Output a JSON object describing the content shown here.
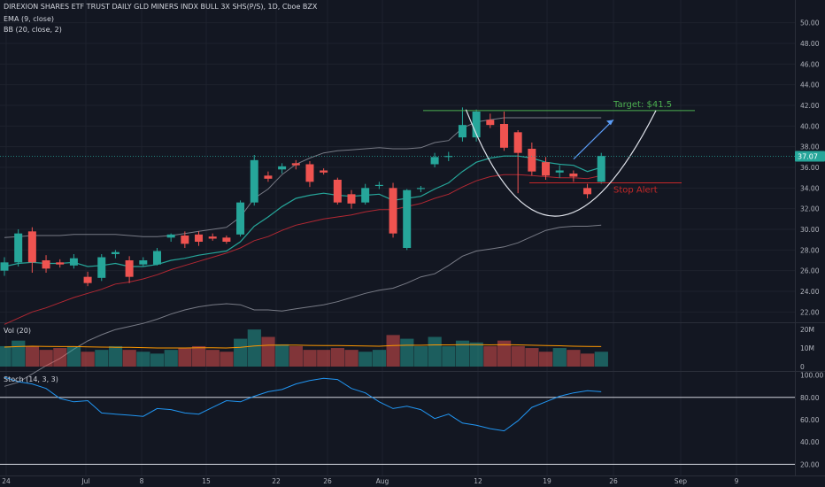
{
  "header": {
    "title": "DIREXION SHARES ETF TRUST DAILY GLD MINERS INDX BULL 3X SHS(P/S), 1D, Cboe BZX",
    "ema_label": "EMA (9, close)",
    "bb_label": "BB (20, close, 2)",
    "vol_label": "Vol (20)",
    "stoch_label": "Stoch (14, 3, 3)"
  },
  "colors": {
    "background": "#131722",
    "up": "#26a69a",
    "down": "#ef5350",
    "ema": "#26a69a",
    "bb_band": "#787b86",
    "bb_basis": "#b22833",
    "target_line": "#4caf50",
    "stop_line": "#c62828",
    "stoch": "#2196f3",
    "cup_curve": "#e0e3eb",
    "arrow": "#5b9cf6"
  },
  "chart_data": {
    "type": "candlestick",
    "price_axis": {
      "ylim": [
        21,
        51
      ],
      "ticks": [
        "22.00",
        "24.00",
        "26.00",
        "28.00",
        "30.00",
        "32.00",
        "34.00",
        "36.00",
        "38.00",
        "40.00",
        "42.00",
        "44.00",
        "46.00",
        "48.00",
        "50.00"
      ]
    },
    "last_price": "37.07",
    "x_ticks": [
      "24",
      "Jul",
      "8",
      "15",
      "22",
      "26",
      "Aug",
      "12",
      "19",
      "26",
      "Sep",
      "9"
    ],
    "candles": [
      {
        "date": "Jun 24",
        "o": 26.0,
        "h": 27.3,
        "l": 25.5,
        "c": 26.8
      },
      {
        "date": "Jun 25",
        "o": 26.8,
        "h": 30.0,
        "l": 26.4,
        "c": 29.6
      },
      {
        "date": "Jun 26",
        "o": 29.8,
        "h": 30.2,
        "l": 25.8,
        "c": 26.8
      },
      {
        "date": "Jun 27",
        "o": 27.0,
        "h": 27.5,
        "l": 25.8,
        "c": 26.2
      },
      {
        "date": "Jun 28",
        "o": 26.8,
        "h": 27.1,
        "l": 26.3,
        "c": 26.6
      },
      {
        "date": "Jul 1",
        "o": 26.5,
        "h": 27.6,
        "l": 26.2,
        "c": 27.2
      },
      {
        "date": "Jul 2",
        "o": 25.4,
        "h": 25.9,
        "l": 24.5,
        "c": 24.8
      },
      {
        "date": "Jul 3",
        "o": 25.3,
        "h": 27.6,
        "l": 25.0,
        "c": 27.3
      },
      {
        "date": "Jul 5",
        "o": 27.6,
        "h": 28.0,
        "l": 27.2,
        "c": 27.8
      },
      {
        "date": "Jul 8",
        "o": 27.0,
        "h": 27.4,
        "l": 24.8,
        "c": 25.4
      },
      {
        "date": "Jul 9",
        "o": 26.6,
        "h": 27.3,
        "l": 26.4,
        "c": 27.0
      },
      {
        "date": "Jul 10",
        "o": 26.6,
        "h": 28.2,
        "l": 26.5,
        "c": 27.9
      },
      {
        "date": "Jul 11",
        "o": 29.2,
        "h": 29.6,
        "l": 28.8,
        "c": 29.5
      },
      {
        "date": "Jul 12",
        "o": 29.4,
        "h": 29.8,
        "l": 28.2,
        "c": 28.6
      },
      {
        "date": "Jul 15",
        "o": 29.5,
        "h": 29.8,
        "l": 28.4,
        "c": 28.8
      },
      {
        "date": "Jul 16",
        "o": 29.3,
        "h": 29.6,
        "l": 28.9,
        "c": 29.1
      },
      {
        "date": "Jul 17",
        "o": 29.2,
        "h": 29.4,
        "l": 28.6,
        "c": 28.8
      },
      {
        "date": "Jul 18",
        "o": 29.5,
        "h": 32.8,
        "l": 29.3,
        "c": 32.6
      },
      {
        "date": "Jul 19",
        "o": 32.6,
        "h": 37.2,
        "l": 32.3,
        "c": 36.7
      },
      {
        "date": "Jul 22",
        "o": 35.2,
        "h": 35.6,
        "l": 34.6,
        "c": 34.9
      },
      {
        "date": "Jul 23",
        "o": 35.8,
        "h": 36.4,
        "l": 35.4,
        "c": 36.1
      },
      {
        "date": "Jul 24",
        "o": 36.4,
        "h": 36.7,
        "l": 35.8,
        "c": 36.2
      },
      {
        "date": "Jul 25",
        "o": 36.3,
        "h": 36.6,
        "l": 34.1,
        "c": 34.6
      },
      {
        "date": "Jul 26",
        "o": 35.7,
        "h": 35.9,
        "l": 35.3,
        "c": 35.5
      },
      {
        "date": "Jul 29",
        "o": 34.8,
        "h": 35.0,
        "l": 32.4,
        "c": 32.6
      },
      {
        "date": "Jul 30",
        "o": 33.4,
        "h": 33.8,
        "l": 32.0,
        "c": 32.5
      },
      {
        "date": "Jul 31",
        "o": 32.6,
        "h": 34.4,
        "l": 32.4,
        "c": 34.0
      },
      {
        "date": "Aug 1",
        "o": 34.2,
        "h": 34.6,
        "l": 33.9,
        "c": 34.3
      },
      {
        "date": "Aug 2",
        "o": 34.0,
        "h": 34.5,
        "l": 29.2,
        "c": 29.6
      },
      {
        "date": "Aug 5",
        "o": 28.2,
        "h": 33.9,
        "l": 28.0,
        "c": 33.8
      },
      {
        "date": "Aug 6",
        "o": 33.9,
        "h": 34.2,
        "l": 33.6,
        "c": 34.0
      },
      {
        "date": "Aug 7",
        "o": 36.3,
        "h": 37.4,
        "l": 36.0,
        "c": 37.0
      },
      {
        "date": "Aug 8",
        "o": 37.0,
        "h": 37.5,
        "l": 36.6,
        "c": 37.1
      },
      {
        "date": "Aug 9",
        "o": 38.9,
        "h": 41.8,
        "l": 38.5,
        "c": 40.1
      },
      {
        "date": "Aug 12",
        "o": 38.9,
        "h": 41.6,
        "l": 38.5,
        "c": 41.4
      },
      {
        "date": "Aug 13",
        "o": 40.6,
        "h": 41.2,
        "l": 39.8,
        "c": 40.1
      },
      {
        "date": "Aug 14",
        "o": 40.2,
        "h": 41.4,
        "l": 37.6,
        "c": 37.9
      },
      {
        "date": "Aug 15",
        "o": 39.4,
        "h": 39.6,
        "l": 33.5,
        "c": 37.4
      },
      {
        "date": "Aug 16",
        "o": 37.8,
        "h": 38.4,
        "l": 35.2,
        "c": 35.6
      },
      {
        "date": "Aug 19",
        "o": 36.5,
        "h": 37.0,
        "l": 34.8,
        "c": 35.2
      },
      {
        "date": "Aug 20",
        "o": 35.5,
        "h": 36.2,
        "l": 35.0,
        "c": 35.7
      },
      {
        "date": "Aug 21",
        "o": 35.4,
        "h": 35.7,
        "l": 34.6,
        "c": 35.1
      },
      {
        "date": "Aug 22",
        "o": 34.0,
        "h": 34.4,
        "l": 33.0,
        "c": 33.4
      },
      {
        "date": "Aug 23",
        "o": 34.6,
        "h": 37.4,
        "l": 34.4,
        "c": 37.1
      }
    ],
    "ema9": [
      26.4,
      26.7,
      26.8,
      26.7,
      26.7,
      26.8,
      26.4,
      26.5,
      26.7,
      26.4,
      26.4,
      26.6,
      27.0,
      27.2,
      27.5,
      27.7,
      27.9,
      28.8,
      30.3,
      31.2,
      32.2,
      33.0,
      33.3,
      33.5,
      33.3,
      33.2,
      33.3,
      33.4,
      32.8,
      33.0,
      33.2,
      33.9,
      34.5,
      35.6,
      36.5,
      36.9,
      37.1,
      37.1,
      36.9,
      36.5,
      36.3,
      36.2,
      35.6,
      36.0
    ],
    "bb_upper": [
      29.2,
      29.3,
      29.4,
      29.4,
      29.4,
      29.5,
      29.5,
      29.5,
      29.5,
      29.4,
      29.3,
      29.3,
      29.4,
      29.6,
      29.8,
      30.0,
      30.2,
      31.2,
      33.0,
      33.9,
      35.3,
      36.3,
      36.9,
      37.4,
      37.6,
      37.7,
      37.8,
      37.9,
      37.8,
      37.8,
      37.9,
      38.4,
      38.6,
      39.8,
      40.4,
      40.6,
      40.8,
      40.8,
      40.8,
      40.8,
      40.8,
      40.8,
      40.8,
      40.8
    ],
    "bb_basis": [
      20.8,
      21.4,
      22.0,
      22.4,
      22.9,
      23.4,
      23.8,
      24.2,
      24.7,
      24.9,
      25.2,
      25.6,
      26.1,
      26.5,
      26.9,
      27.3,
      27.7,
      28.2,
      28.9,
      29.3,
      29.9,
      30.4,
      30.7,
      31.0,
      31.2,
      31.4,
      31.7,
      31.9,
      31.9,
      32.2,
      32.5,
      33.0,
      33.4,
      34.1,
      34.7,
      35.1,
      35.3,
      35.3,
      35.2,
      35.1,
      35.0,
      35.0,
      34.9,
      35.2
    ],
    "bb_lower": [
      14.8,
      15.2,
      16.0,
      16.8,
      17.5,
      18.4,
      19.2,
      19.8,
      20.3,
      20.6,
      20.9,
      21.3,
      21.8,
      22.2,
      22.5,
      22.7,
      22.8,
      22.7,
      22.2,
      22.2,
      22.1,
      22.3,
      22.5,
      22.7,
      23.0,
      23.4,
      23.8,
      24.1,
      24.3,
      24.8,
      25.4,
      25.7,
      26.5,
      27.4,
      27.9,
      28.1,
      28.3,
      28.7,
      29.3,
      29.9,
      30.2,
      30.3,
      30.3,
      30.4
    ],
    "volume": {
      "ticks": [
        "0",
        "10M",
        "20M"
      ],
      "ylim": [
        0,
        21
      ],
      "values": [
        11,
        14,
        11,
        9,
        10,
        11,
        8,
        9,
        11,
        9,
        8,
        7,
        9,
        10,
        11,
        9,
        8,
        15,
        20,
        16,
        12,
        11,
        9,
        9,
        10,
        9,
        8,
        9,
        17,
        15,
        11,
        16,
        11,
        14,
        13,
        11,
        14,
        11,
        10,
        8,
        10,
        9,
        7,
        8
      ],
      "ma": [
        10.5,
        10.8,
        11.0,
        10.9,
        10.8,
        10.8,
        10.6,
        10.5,
        10.4,
        10.4,
        10.2,
        10.0,
        10.0,
        10.0,
        10.1,
        10.1,
        10.0,
        10.4,
        11.1,
        11.5,
        11.6,
        11.6,
        11.4,
        11.3,
        11.3,
        11.2,
        11.1,
        11.0,
        11.3,
        11.5,
        11.5,
        11.7,
        11.7,
        11.8,
        11.8,
        11.7,
        11.8,
        11.7,
        11.5,
        11.3,
        11.2,
        11.0,
        10.9,
        10.8
      ]
    },
    "stoch": {
      "ticks": [
        "20.00",
        "40.00",
        "60.00",
        "80.00",
        "100.00"
      ],
      "ylim": [
        14,
        102
      ],
      "levels": [
        80,
        20
      ],
      "values": [
        98,
        94,
        92,
        88,
        79,
        76,
        77,
        66,
        65,
        64,
        63,
        70,
        69,
        66,
        65,
        71,
        77,
        76,
        81,
        85,
        87,
        92,
        95,
        97,
        96,
        88,
        84,
        76,
        70,
        72,
        69,
        61,
        65,
        57,
        55,
        52,
        50,
        59,
        71,
        76,
        81,
        84,
        86,
        85
      ]
    },
    "annotations": {
      "target_label": "Target: $41.5",
      "target_price": 41.5,
      "stop_label": "Stop Alert",
      "stop_price": 34.5
    }
  }
}
